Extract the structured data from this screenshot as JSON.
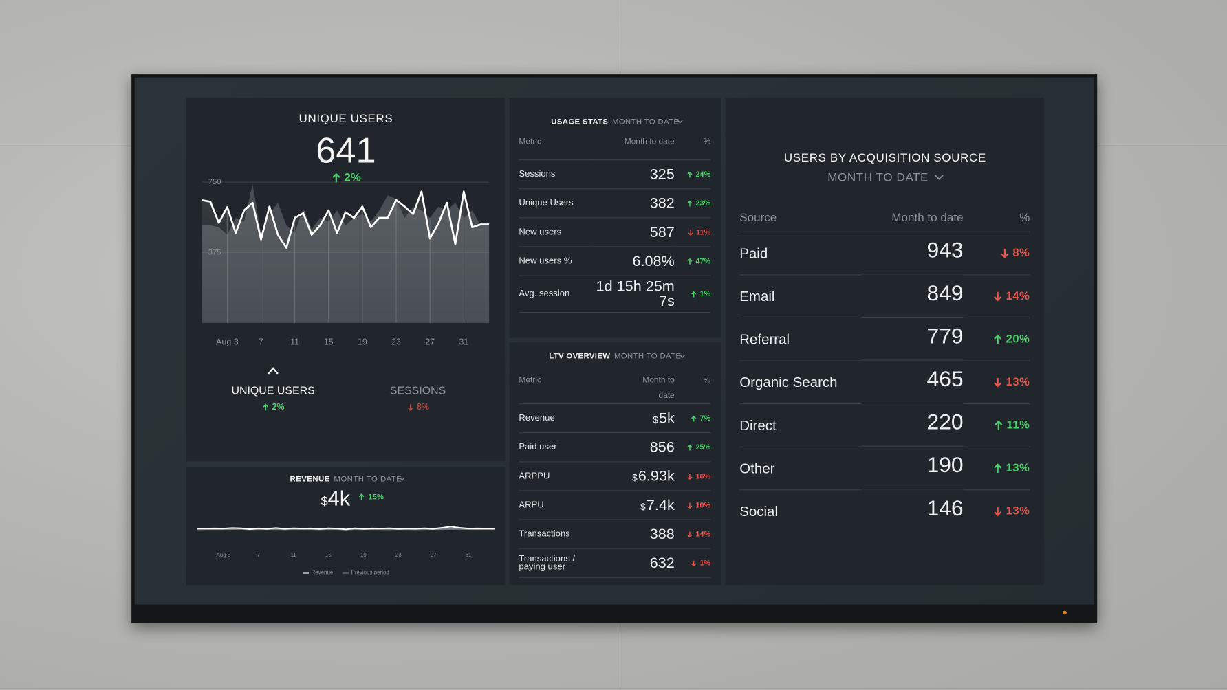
{
  "unique_users": {
    "title": "UNIQUE USERS",
    "value": "641",
    "change": "2%",
    "direction": "up",
    "chart_data": {
      "type": "line",
      "categories": [
        null,
        null,
        null,
        "Aug 3",
        null,
        null,
        null,
        "7",
        null,
        null,
        null,
        "11",
        null,
        null,
        null,
        "15",
        null,
        null,
        null,
        "19",
        null,
        null,
        null,
        "23",
        null,
        null,
        null,
        "27",
        null,
        null,
        null,
        "31",
        null,
        null,
        null
      ],
      "series": [
        {
          "color": "#ffffff",
          "values": [
            654,
            646,
            533,
            617,
            479,
            600,
            640,
            445,
            620,
            470,
            400,
            560,
            585,
            470,
            520,
            600,
            480,
            590,
            560,
            620,
            510,
            560,
            560,
            655,
            620,
            580,
            700,
            450,
            530,
            640,
            420,
            700,
            510,
            525,
            525
          ]
        },
        {
          "color": "#7b8085",
          "values": [
            520,
            520,
            510,
            470,
            560,
            540,
            740,
            480,
            580,
            640,
            520,
            480,
            610,
            500,
            560,
            540,
            600,
            520,
            560,
            580,
            540,
            600,
            680,
            660,
            560,
            620,
            600,
            560,
            620,
            600,
            640,
            560,
            600,
            520,
            520
          ]
        }
      ],
      "ylim": [
        0,
        750
      ],
      "yticks": [
        375,
        750
      ],
      "grid": true
    },
    "toggles": [
      {
        "label": "UNIQUE USERS",
        "change": "2%",
        "direction": "up"
      },
      {
        "label": "SESSIONS",
        "change": "8%",
        "direction": "down"
      }
    ]
  },
  "revenue": {
    "title": "REVENUE",
    "period": "MONTH TO DATE",
    "prefix": "$",
    "value": "4k",
    "change": "15%",
    "direction": "up",
    "chart_data": {
      "type": "line",
      "categories": [
        null,
        null,
        null,
        "Aug 3",
        null,
        null,
        null,
        "7",
        null,
        null,
        null,
        "11",
        null,
        null,
        null,
        "15",
        null,
        null,
        null,
        "19",
        null,
        null,
        null,
        "23",
        null,
        null,
        null,
        "27",
        null,
        null,
        null,
        "31",
        null,
        null,
        null
      ],
      "series": [
        {
          "name": "Revenue",
          "color": "#ffffff",
          "values": [
            4000,
            4000,
            4050,
            4000,
            4200,
            4100,
            3800,
            4050,
            3900,
            4200,
            3900,
            4100,
            4000,
            4050,
            3850,
            4100,
            4000,
            3700,
            4100,
            3900,
            4050,
            4000,
            4100,
            3900,
            4000,
            3950,
            4100,
            3900,
            4300,
            4700,
            4300,
            4000,
            4050,
            4000,
            4000
          ]
        },
        {
          "name": "Previous period",
          "color": "#7b8085",
          "values": [
            3700,
            3750,
            3800,
            3750,
            3800,
            3850,
            3700,
            3800,
            3750,
            3800,
            3700,
            3800,
            3750,
            3800,
            3700,
            3750,
            3800,
            3650,
            3800,
            3750,
            3800,
            3750,
            3700,
            3800,
            3750,
            3700,
            3800,
            3750,
            3800,
            3900,
            3850,
            3800,
            3750,
            3800,
            3800
          ]
        }
      ],
      "ylim": [
        0,
        8000
      ]
    }
  },
  "usage_stats": {
    "title": "USAGE STATS",
    "period": "MONTH TO DATE",
    "columns": [
      "Metric",
      "Month to date",
      "%"
    ],
    "rows": [
      {
        "metric": "Sessions",
        "value": "325",
        "change": "24%",
        "direction": "up"
      },
      {
        "metric": "Unique Users",
        "value": "382",
        "change": "23%",
        "direction": "up"
      },
      {
        "metric": "New users",
        "value": "587",
        "change": "11%",
        "direction": "down"
      },
      {
        "metric": "New users %",
        "value": "6.08%",
        "change": "47%",
        "direction": "up"
      },
      {
        "metric": "Avg. session",
        "value": "1d 15h 25m 7s",
        "change": "1%",
        "direction": "up"
      }
    ]
  },
  "ltv_overview": {
    "title": "LTV OVERVIEW",
    "period": "MONTH TO DATE",
    "columns": [
      "Metric",
      "Month to date",
      "%"
    ],
    "rows": [
      {
        "metric": "Revenue",
        "prefix": "$",
        "value": "5k",
        "change": "7%",
        "direction": "up"
      },
      {
        "metric": "Paid user",
        "value": "856",
        "change": "25%",
        "direction": "up"
      },
      {
        "metric": "ARPPU",
        "prefix": "$",
        "value": "6.93k",
        "change": "16%",
        "direction": "down"
      },
      {
        "metric": "ARPU",
        "prefix": "$",
        "value": "7.4k",
        "change": "10%",
        "direction": "down"
      },
      {
        "metric": "Transactions",
        "value": "388",
        "change": "14%",
        "direction": "down"
      },
      {
        "metric": "Transactions / paying user",
        "value": "632",
        "change": "1%",
        "direction": "down"
      }
    ]
  },
  "acquisition": {
    "title": "USERS BY ACQUISITION SOURCE",
    "period": "MONTH TO DATE",
    "columns": [
      "Source",
      "Month to date",
      "%"
    ],
    "rows": [
      {
        "source": "Paid",
        "value": "943",
        "change": "8%",
        "direction": "down"
      },
      {
        "source": "Email",
        "value": "849",
        "change": "14%",
        "direction": "down"
      },
      {
        "source": "Referral",
        "value": "779",
        "change": "20%",
        "direction": "up"
      },
      {
        "source": "Organic Search",
        "value": "465",
        "change": "13%",
        "direction": "down"
      },
      {
        "source": "Direct",
        "value": "220",
        "change": "11%",
        "direction": "up"
      },
      {
        "source": "Other",
        "value": "190",
        "change": "13%",
        "direction": "up"
      },
      {
        "source": "Social",
        "value": "146",
        "change": "13%",
        "direction": "down"
      }
    ]
  }
}
